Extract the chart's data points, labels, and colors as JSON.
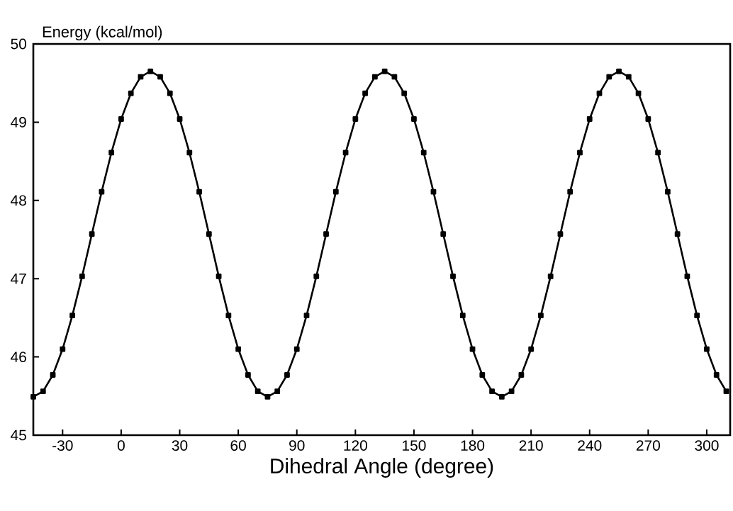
{
  "chart_data": {
    "type": "line",
    "xlabel": "Dihedral Angle (degree)",
    "ylabel": "Energy (kcal/mol)",
    "x": [
      -45,
      -40,
      -35,
      -30,
      -25,
      -20,
      -15,
      -10,
      -5,
      0,
      5,
      10,
      15,
      20,
      25,
      30,
      35,
      40,
      45,
      50,
      55,
      60,
      65,
      70,
      75,
      80,
      85,
      90,
      95,
      100,
      105,
      110,
      115,
      120,
      125,
      130,
      135,
      140,
      145,
      150,
      155,
      160,
      165,
      170,
      175,
      180,
      185,
      190,
      195,
      200,
      205,
      210,
      215,
      220,
      225,
      230,
      235,
      240,
      245,
      250,
      255,
      260,
      265,
      270,
      275,
      280,
      285,
      290,
      295,
      300,
      305,
      310
    ],
    "series": [
      {
        "color": "#000000",
        "values": [
          45.49,
          45.56,
          45.77,
          46.1,
          46.53,
          47.03,
          47.57,
          48.11,
          48.61,
          49.04,
          49.37,
          49.58,
          49.65,
          49.58,
          49.37,
          49.04,
          48.61,
          48.11,
          47.57,
          47.03,
          46.53,
          46.1,
          45.77,
          45.56,
          45.49,
          45.56,
          45.77,
          46.1,
          46.53,
          47.03,
          47.57,
          48.11,
          48.61,
          49.04,
          49.37,
          49.58,
          49.65,
          49.58,
          49.37,
          49.04,
          48.61,
          48.11,
          47.57,
          47.03,
          46.53,
          46.1,
          45.77,
          45.56,
          45.49,
          45.56,
          45.77,
          46.1,
          46.53,
          47.03,
          47.57,
          48.11,
          48.61,
          49.04,
          49.37,
          49.58,
          49.65,
          49.58,
          49.37,
          49.04,
          48.61,
          48.11,
          47.57,
          47.03,
          46.53,
          46.1,
          45.77,
          45.56
        ]
      }
    ],
    "xlim": [
      -45,
      312
    ],
    "ylim": [
      45,
      50
    ],
    "xticks": [
      -30,
      0,
      30,
      60,
      90,
      120,
      150,
      180,
      210,
      240,
      270,
      300
    ],
    "yticks": [
      45,
      46,
      47,
      48,
      49,
      50
    ],
    "marker": "square",
    "line_style": "solid"
  }
}
